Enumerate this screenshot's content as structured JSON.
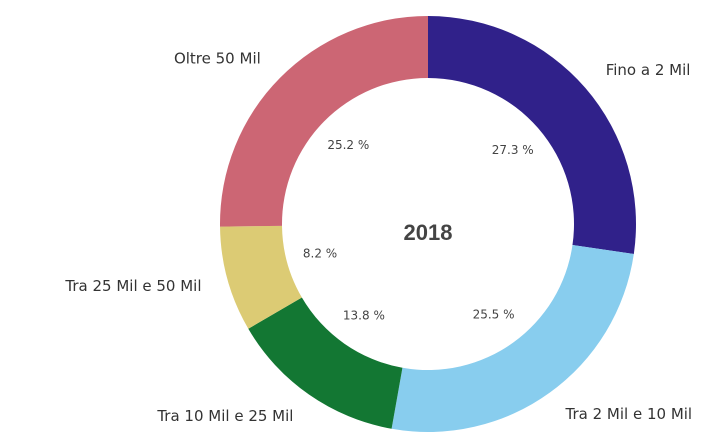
{
  "chart_data": {
    "type": "donut",
    "center_label": "2018",
    "categories": [
      "Fino a 2 Mil",
      "Tra 2 Mil e 10 Mil",
      "Tra 10 Mil e 25 Mil",
      "Tra 25 Mil e 50 Mil",
      "Oltre 50 Mil"
    ],
    "values": [
      27.3,
      25.5,
      13.8,
      8.2,
      25.2
    ],
    "value_labels": [
      "27.3 %",
      "25.5 %",
      "13.8 %",
      "8.2 %",
      "25.2 %"
    ],
    "colors": [
      "#30218a",
      "#88cdee",
      "#137733",
      "#dccb74",
      "#cc6674"
    ]
  }
}
